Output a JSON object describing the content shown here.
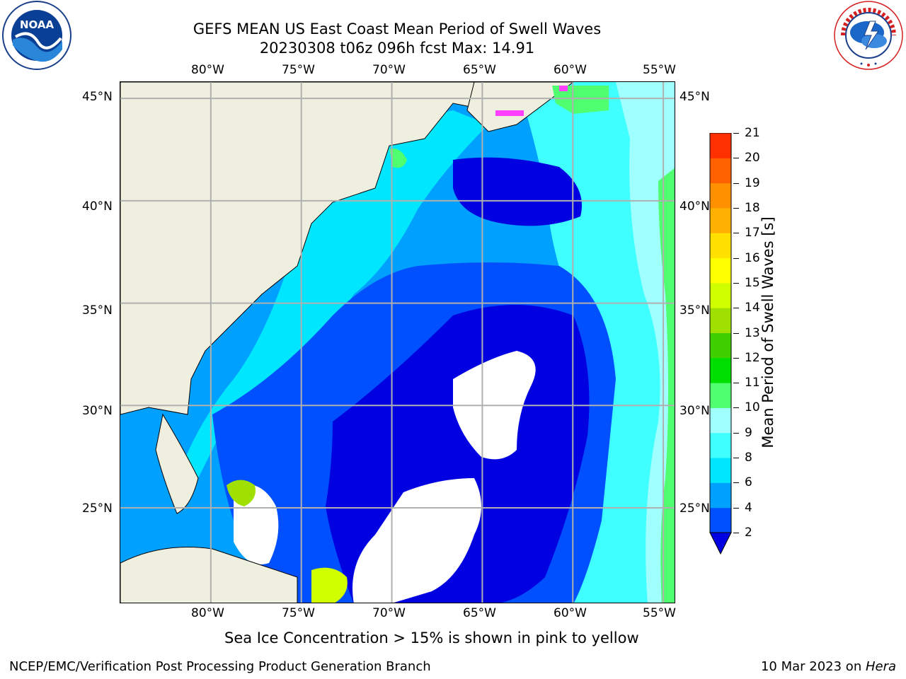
{
  "title": {
    "line1": "GEFS MEAN US East Coast Mean Period of Swell Waves",
    "line2": "20230308 t06z 096h fcst   Max: 14.91"
  },
  "logos": {
    "left": {
      "name": "noaa-logo",
      "text": "NOAA",
      "ring_text": "NATIONAL OCEANIC AND ATMOSPHERIC ADMINISTRATION · U.S. DEPARTMENT OF COMMERCE"
    },
    "right": {
      "name": "nws-logo",
      "ring_text": "NATIONAL WEATHER SERVICE"
    }
  },
  "map": {
    "lon_labels": [
      "80°W",
      "75°W",
      "70°W",
      "65°W",
      "60°W",
      "55°W"
    ],
    "lat_labels": [
      "45°N",
      "40°N",
      "35°N",
      "30°N",
      "25°N"
    ],
    "lon_values": [
      -80,
      -75,
      -70,
      -65,
      -60,
      -55
    ],
    "lat_values": [
      45,
      40,
      35,
      30,
      25
    ],
    "lon_range": [
      -85,
      -54.3
    ],
    "lat_range": [
      20.3,
      45.8
    ],
    "land_color": "#efefdf",
    "grid_color": "#b0b0b0",
    "no_data_color": "#ffffff"
  },
  "colorbar": {
    "label": "Mean Period of Swell Waves [s]",
    "ticks": [
      "2",
      "4",
      "6",
      "8",
      "9",
      "10",
      "11",
      "12",
      "13",
      "14",
      "15",
      "16",
      "17",
      "18",
      "19",
      "20",
      "21"
    ],
    "colors": [
      "#0050ff",
      "#00a0ff",
      "#00e6ff",
      "#40ffff",
      "#a0ffff",
      "#50ff70",
      "#00e000",
      "#40d000",
      "#a0e000",
      "#d0ff00",
      "#ffff00",
      "#ffe000",
      "#ffb000",
      "#ff9000",
      "#ff6000",
      "#ff3000",
      "#ff0000"
    ],
    "extend_color": "#0000e0"
  },
  "sea_ice_note": "Sea Ice Concentration > 15% is shown in pink to yellow",
  "footer": {
    "left": "NCEP/EMC/Verification Post Processing Product Generation Branch",
    "right_date": "10 Mar 2023 on ",
    "right_host": "Hera"
  }
}
